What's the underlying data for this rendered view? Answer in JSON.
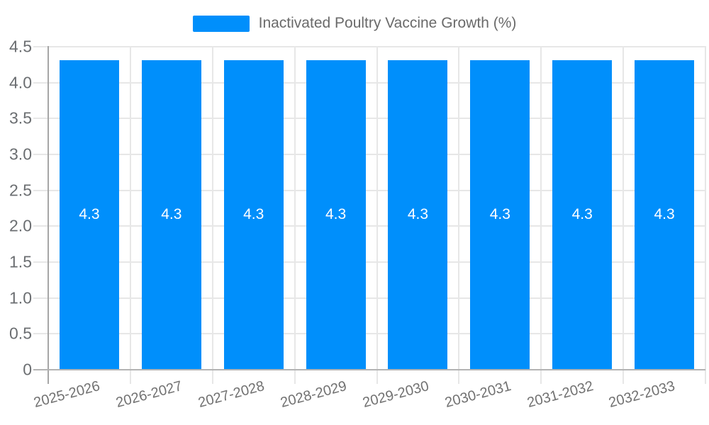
{
  "legend": {
    "label": "Inactivated Poultry Vaccine Growth (%)",
    "swatch_color": "#008FFB"
  },
  "chart_data": {
    "type": "bar",
    "title": "Inactivated Poultry Vaccine Growth (%)",
    "categories": [
      "2025-2026",
      "2026-2027",
      "2027-2028",
      "2028-2029",
      "2029-2030",
      "2030-2031",
      "2031-2032",
      "2032-2033"
    ],
    "values": [
      4.3,
      4.3,
      4.3,
      4.3,
      4.3,
      4.3,
      4.3,
      4.3
    ],
    "bar_value_labels": [
      "4.3",
      "4.3",
      "4.3",
      "4.3",
      "4.3",
      "4.3",
      "4.3",
      "4.3"
    ],
    "xlabel": "",
    "ylabel": "",
    "ylim": [
      0,
      4.5
    ],
    "ytick_labels": [
      "0",
      "0.5",
      "1.0",
      "1.5",
      "2.0",
      "2.5",
      "3.0",
      "3.5",
      "4.0",
      "4.5"
    ],
    "grid": true,
    "legend_position": "top",
    "colors": {
      "bar": "#008FFB",
      "grid_line": "#e7e7e7",
      "y_axis_line": "#a6a6a6",
      "x_axis_line": "#b3b3b3",
      "y_tick_text": "#6b6e71",
      "x_tick_text": "#717171",
      "bar_value_text": "#ffffff",
      "legend_text": "#6a6a6a"
    }
  }
}
